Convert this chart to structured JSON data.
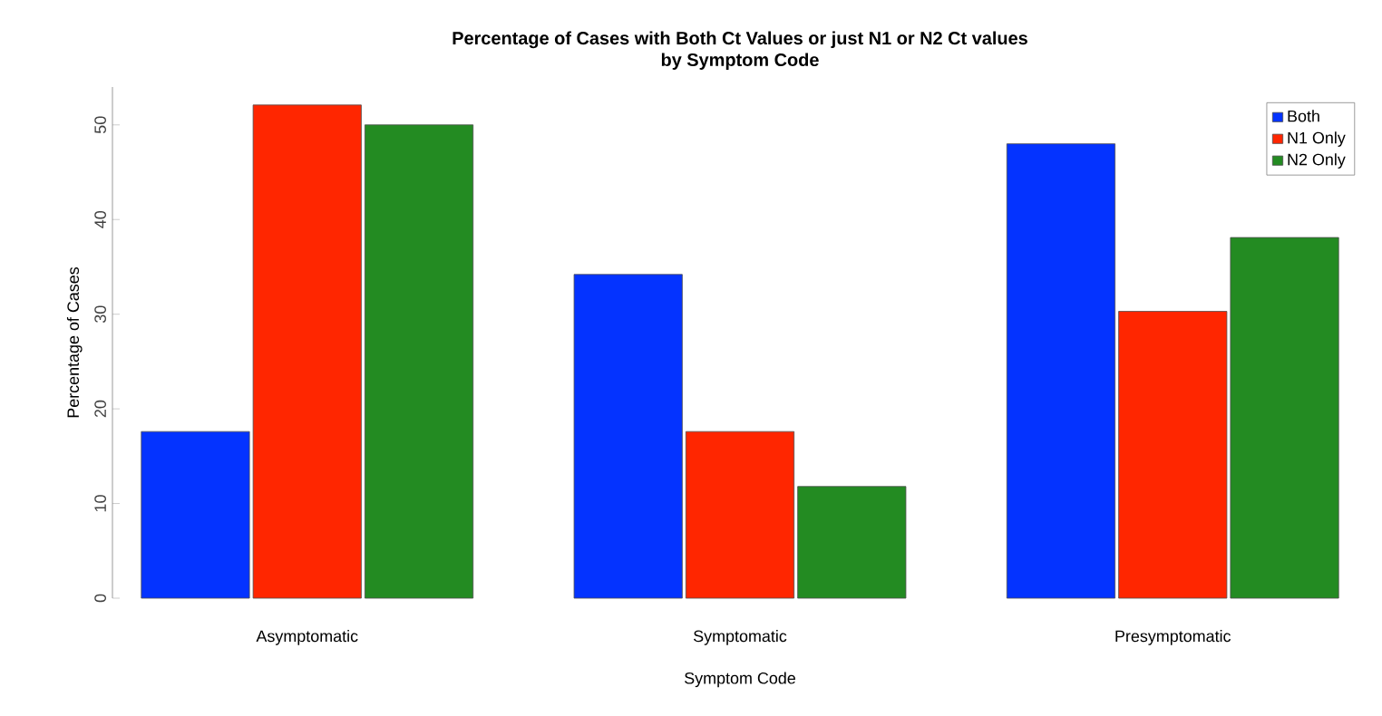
{
  "chart_data": {
    "type": "bar",
    "title": "Percentage of Cases with Both Ct Values or just N1 or N2 Ct values",
    "subtitle": "by Symptom Code",
    "xlabel": "Symptom Code",
    "ylabel": "Percentage of Cases",
    "categories": [
      "Asymptomatic",
      "Symptomatic",
      "Presymptomatic"
    ],
    "series": [
      {
        "name": "Both",
        "color": "#0433ff",
        "values": [
          17.6,
          34.2,
          48.0
        ]
      },
      {
        "name": "N1 Only",
        "color": "#ff2600",
        "values": [
          52.1,
          17.6,
          30.3
        ]
      },
      {
        "name": "N2 Only",
        "color": "#238b22",
        "values": [
          50.0,
          11.8,
          38.1
        ]
      }
    ],
    "ylim": [
      0,
      54
    ],
    "yticks": [
      0,
      10,
      20,
      30,
      40,
      50
    ],
    "grid": false,
    "legend": "top right"
  }
}
